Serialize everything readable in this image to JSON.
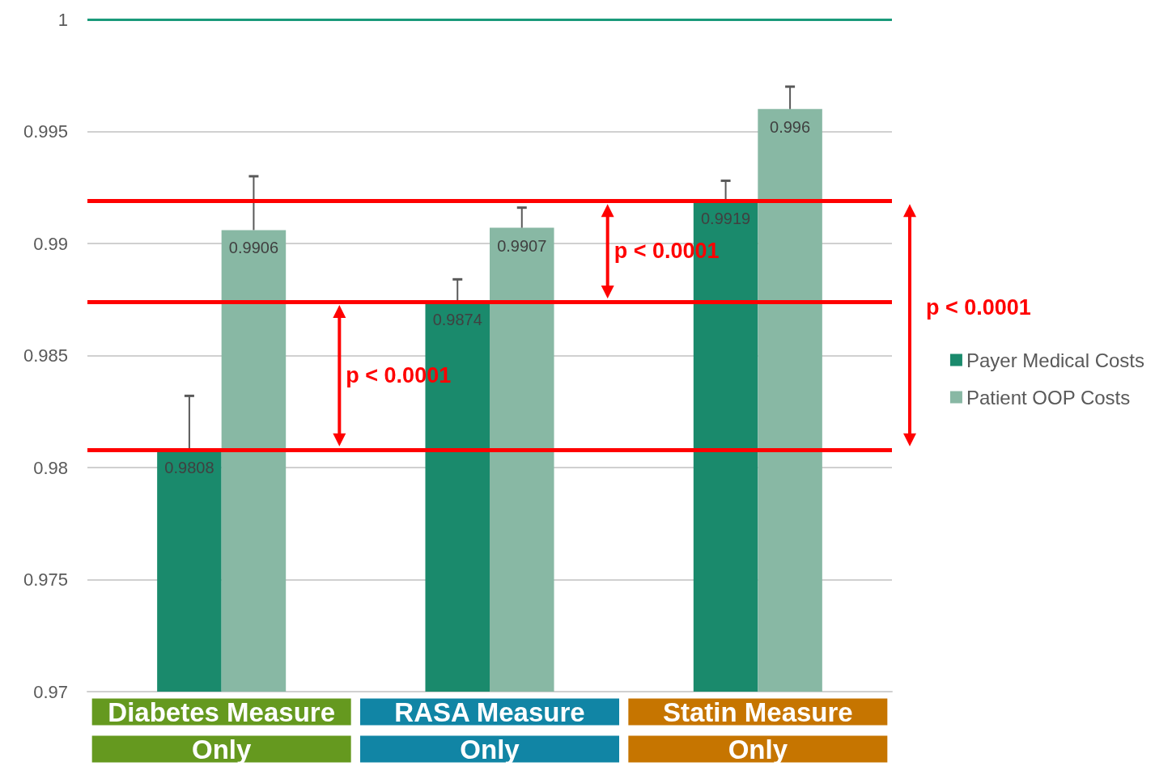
{
  "chart_data": {
    "type": "bar",
    "categories": [
      "Diabetes Measure Only",
      "RASA Measure Only",
      "Statin Measure Only"
    ],
    "series": [
      {
        "name": "Payer Medical Costs",
        "color": "#1a8a6c",
        "values": [
          0.9808,
          0.9874,
          0.9919
        ],
        "errors": [
          [
            0.9808,
            0.9832
          ],
          [
            0.9874,
            0.9884
          ],
          [
            0.9919,
            0.9928
          ]
        ]
      },
      {
        "name": "Patient OOP Costs",
        "color": "#88b8a4",
        "values": [
          0.9906,
          0.9907,
          0.996
        ],
        "errors": [
          [
            0.9906,
            0.993
          ],
          [
            0.9907,
            0.9916
          ],
          [
            0.996,
            0.997
          ]
        ]
      }
    ],
    "ylim": [
      0.97,
      1
    ],
    "yticks": [
      0.97,
      0.975,
      0.98,
      0.985,
      0.99,
      0.995,
      1
    ],
    "grid": "y",
    "legend": "right",
    "data_labels": true,
    "ref_lines": [
      {
        "axis": "y",
        "value": 0.9808,
        "color": "#ff0000"
      },
      {
        "axis": "y",
        "value": 0.9874,
        "color": "#ff0000"
      },
      {
        "axis": "y",
        "value": 0.9919,
        "color": "#ff0000"
      },
      {
        "axis": "y",
        "value": 1,
        "color": "#1a9a7a"
      }
    ],
    "annotations": [
      "p < 0.0001",
      {
        "text": "p < 0.0001",
        "y": 0.9919
      },
      "p < 0.0001"
    ]
  }
}
